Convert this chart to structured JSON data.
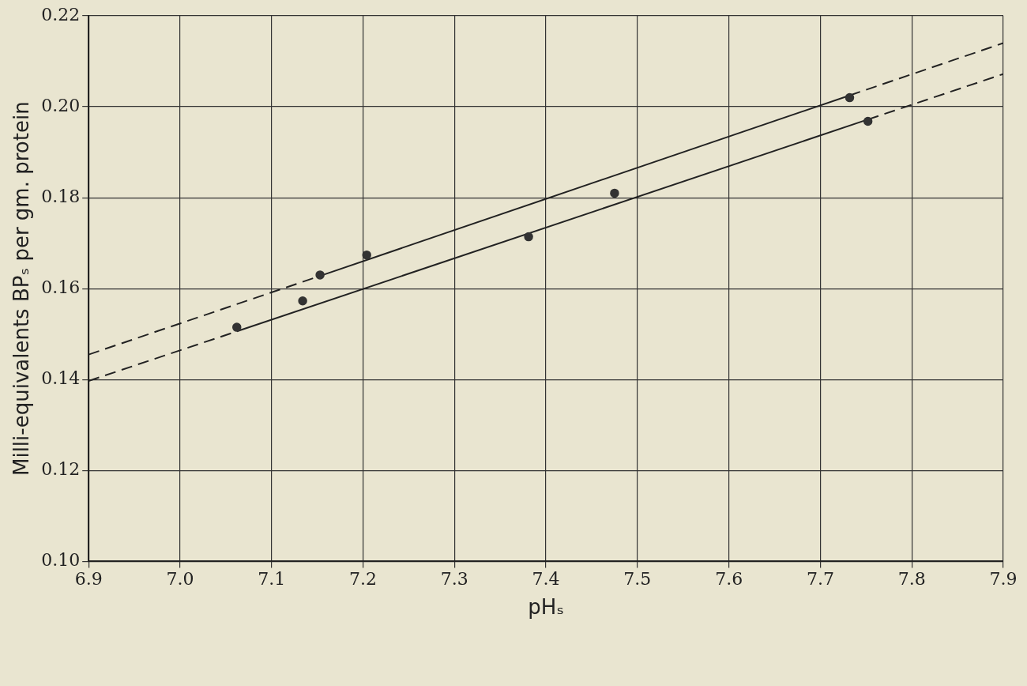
{
  "chart_data": {
    "type": "scatter",
    "xlabel": "pHₛ",
    "ylabel": "Milli-equivalents BPₛ per gm. protein",
    "xlim": [
      6.9,
      7.9
    ],
    "xticks": [
      {
        "value": 6.9,
        "label": "6.9"
      },
      {
        "value": 7,
        "label": "7.0"
      },
      {
        "value": 7.1,
        "label": "7.1"
      },
      {
        "value": 7.2,
        "label": "7.2"
      },
      {
        "value": 7.3,
        "label": "7.3"
      },
      {
        "value": 7.4,
        "label": "7.4"
      },
      {
        "value": 7.5,
        "label": "7.5"
      },
      {
        "value": 7.6,
        "label": "7.6"
      },
      {
        "value": 7.7,
        "label": "7.7"
      },
      {
        "value": 7.8,
        "label": "7.8"
      },
      {
        "value": 7.9,
        "label": "7.9"
      }
    ],
    "ylim": [
      0.1,
      0.22
    ],
    "yticks": [
      {
        "value": 0.1,
        "label": "0.10"
      },
      {
        "value": 0.12,
        "label": "0.12"
      },
      {
        "value": 0.14,
        "label": "0.14"
      },
      {
        "value": 0.16,
        "label": "0.16"
      },
      {
        "value": 0.18,
        "label": "0.18"
      },
      {
        "value": 0.2,
        "label": "0.20"
      },
      {
        "value": 0.22,
        "label": "0.22"
      }
    ],
    "grid": true,
    "legend": false,
    "series": [
      {
        "marker": "circle",
        "color": "#333333",
        "x": [
          7.153,
          7.204,
          7.475,
          7.732
        ],
        "values": [
          0.163,
          0.1674,
          0.181,
          0.202
        ]
      },
      {
        "marker": "circle",
        "color": "#333333",
        "x": [
          7.062,
          7.134,
          7.381,
          7.752
        ],
        "values": [
          0.1515,
          0.1573,
          0.1714,
          0.1968
        ]
      },
      {
        "type": "line",
        "color": "#222222",
        "line_style": "dashed",
        "x": [
          6.9,
          7.153
        ],
        "values": [
          0.1455,
          0.1628
        ]
      },
      {
        "type": "line",
        "color": "#222222",
        "line_style": "solid",
        "x": [
          7.153,
          7.732
        ],
        "values": [
          0.1628,
          0.2025
        ]
      },
      {
        "type": "line",
        "color": "#222222",
        "line_style": "dashed",
        "x": [
          7.732,
          7.9
        ],
        "values": [
          0.2025,
          0.214
        ]
      },
      {
        "type": "line",
        "color": "#222222",
        "line_style": "dashed",
        "x": [
          6.9,
          7.062
        ],
        "values": [
          0.1397,
          0.1506
        ]
      },
      {
        "type": "line",
        "color": "#222222",
        "line_style": "solid",
        "x": [
          7.062,
          7.752
        ],
        "values": [
          0.1506,
          0.1972
        ]
      },
      {
        "type": "line",
        "color": "#222222",
        "line_style": "dashed",
        "x": [
          7.752,
          7.9
        ],
        "values": [
          0.1972,
          0.2072
        ]
      }
    ]
  }
}
